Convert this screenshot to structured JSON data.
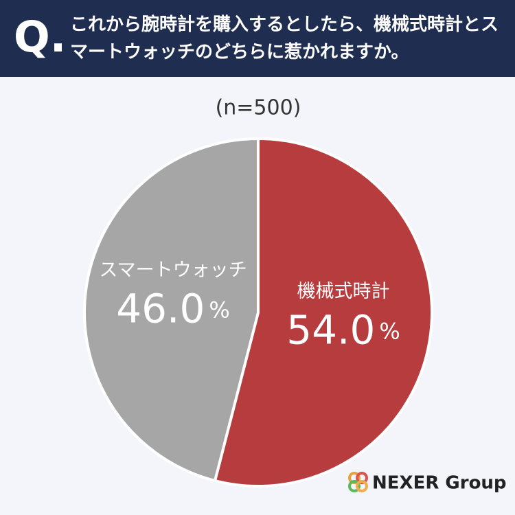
{
  "chart_data": {
    "type": "pie",
    "title": "これから腕時計を購入するとしたら、機械式時計とスマートウォッチのどちらに惹かれますか。",
    "question_mark": "Q.",
    "subtitle": "(n=500)",
    "categories": [
      "機械式時計",
      "スマートウォッチ"
    ],
    "values": [
      54.0,
      46.0
    ],
    "value_labels": [
      "54.0%",
      "46.0%"
    ],
    "colors": [
      "#b73c3d",
      "#a6a6a6"
    ]
  },
  "logo": "NEXER Group"
}
